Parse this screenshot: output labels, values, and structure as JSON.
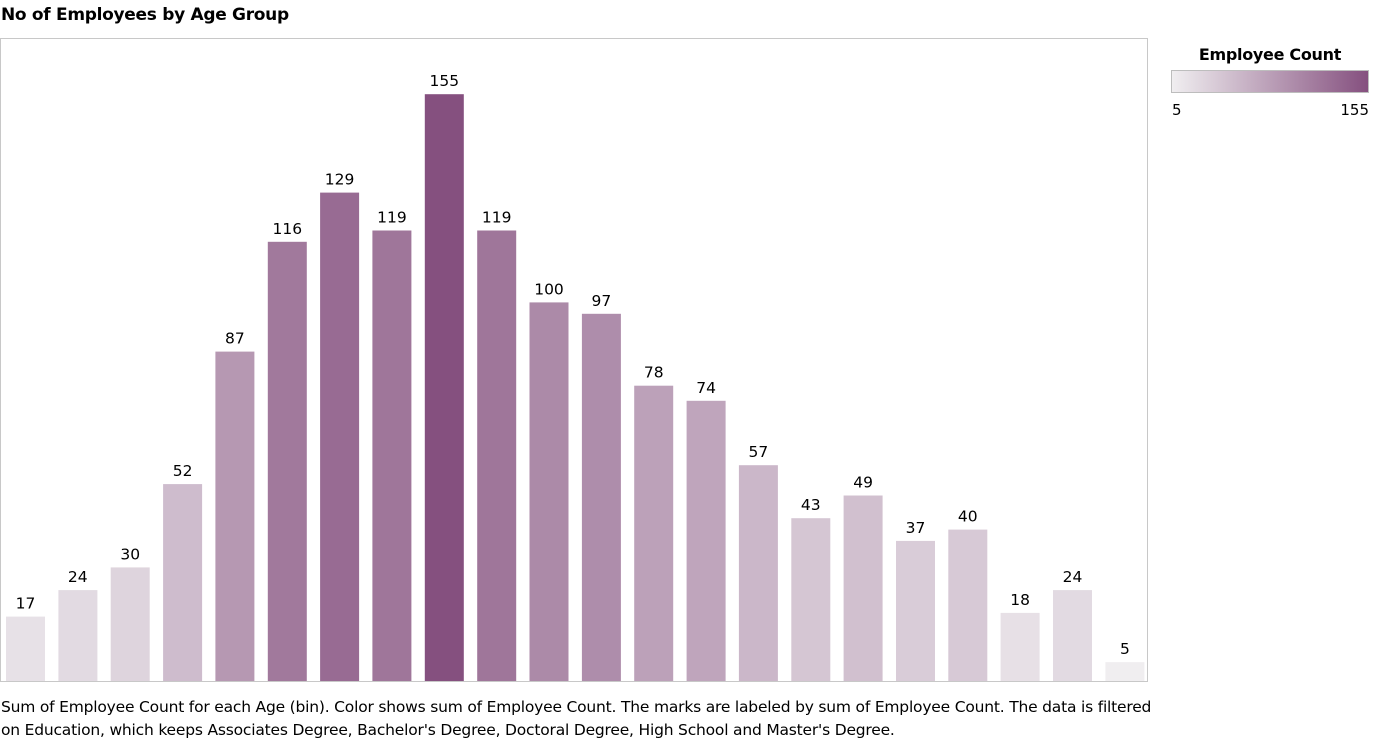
{
  "header": {
    "title": "No of Employees by Age Group"
  },
  "legend": {
    "title": "Employee Count",
    "min_label": "5",
    "max_label": "155",
    "color_low": "#f0eef0",
    "color_high": "#85507f"
  },
  "caption": "Sum of Employee Count for each Age (bin).  Color shows sum of Employee Count.  The marks are labeled by sum of Employee Count. The data is filtered on Education, which keeps Associates Degree, Bachelor's Degree, Doctoral Degree, High School and Master's Degree.",
  "chart_data": {
    "type": "bar",
    "title": "No of Employees by Age Group",
    "xlabel": "",
    "ylabel": "",
    "values": [
      17,
      24,
      30,
      52,
      87,
      116,
      129,
      119,
      155,
      119,
      100,
      97,
      78,
      74,
      57,
      43,
      49,
      37,
      40,
      18,
      24,
      5
    ],
    "data_labels": [
      "17",
      "24",
      "30",
      "52",
      "87",
      "116",
      "129",
      "119",
      "155",
      "119",
      "100",
      "97",
      "78",
      "74",
      "57",
      "43",
      "49",
      "37",
      "40",
      "18",
      "24",
      "5"
    ],
    "color_scale": {
      "min": 5,
      "max": 155,
      "low": "#f0eef0",
      "high": "#85507f"
    },
    "grid": false,
    "legend_position": "top-right"
  }
}
